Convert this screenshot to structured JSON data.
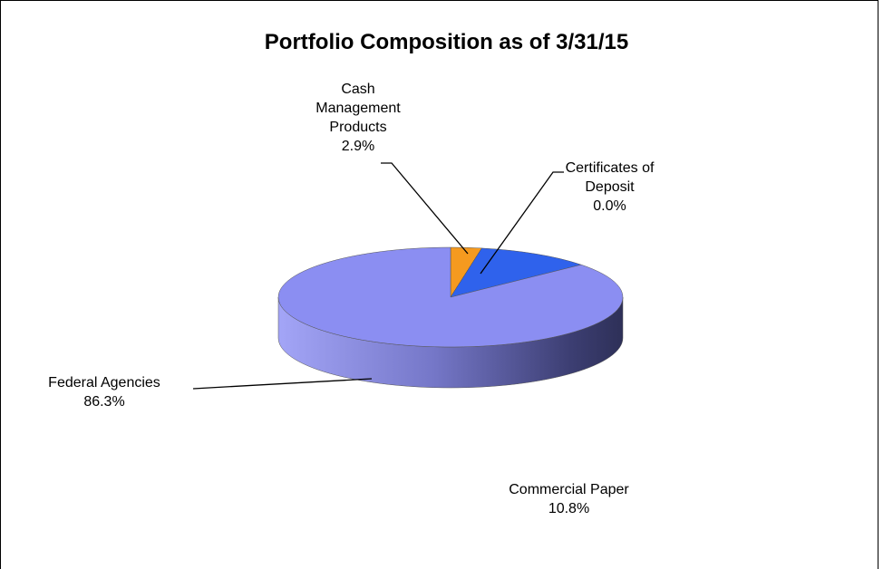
{
  "chart_data": {
    "type": "pie3d",
    "title": "Portfolio Composition as of 3/31/15",
    "categories": [
      "Cash Management Products",
      "Certificates of Deposit",
      "Commercial Paper",
      "Federal Agencies"
    ],
    "values": [
      2.9,
      0.0,
      10.8,
      86.3
    ],
    "value_labels": [
      "2.9%",
      "0.0%",
      "10.8%",
      "86.3%"
    ],
    "colors": [
      "#f59a1f",
      "#1f3fd0",
      "#2f62ec",
      "#8b8ef2"
    ]
  }
}
